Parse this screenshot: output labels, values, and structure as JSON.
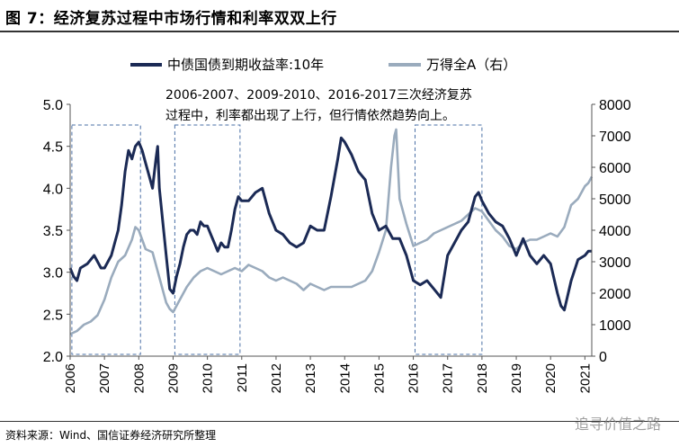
{
  "figure": {
    "title": "图 7：经济复苏过程中市场行情和利率双双上行",
    "source": "资料来源：Wind、国信证券经济研究所整理",
    "watermark": "追寻价值之路"
  },
  "chart_data": {
    "type": "line",
    "title": "图 7：经济复苏过程中市场行情和利率双双上行",
    "annotation_line1": "2006-2007、2009-2010、2016-2017三次经济复苏",
    "annotation_line2": "过程中，利率都出现了上行，但行情依然趋势向上。",
    "x_ticks": [
      "2006",
      "2007",
      "2008",
      "2009",
      "2010",
      "2011",
      "2012",
      "2013",
      "2014",
      "2015",
      "2016",
      "2017",
      "2018",
      "2019",
      "2020",
      "2021"
    ],
    "x_range": [
      2006.0,
      2021.2
    ],
    "y_left": {
      "ticks": [
        "2.0",
        "2.5",
        "3.0",
        "3.5",
        "4.0",
        "4.5",
        "5.0"
      ],
      "range": [
        2.0,
        5.0
      ]
    },
    "y_right": {
      "ticks": [
        "0",
        "1000",
        "2000",
        "3000",
        "4000",
        "5000",
        "6000",
        "7000",
        "8000"
      ],
      "range": [
        0,
        8000
      ]
    },
    "highlight_periods": [
      [
        2006.05,
        2008.05
      ],
      [
        2009.05,
        2010.95
      ],
      [
        2016.05,
        2018.0
      ]
    ],
    "series": [
      {
        "name": "中债国债到期收益率:10年",
        "axis": "left",
        "color": "#1b2a55",
        "x": [
          2006.0,
          2006.1,
          2006.2,
          2006.3,
          2006.5,
          2006.7,
          2006.9,
          2007.0,
          2007.2,
          2007.4,
          2007.5,
          2007.6,
          2007.7,
          2007.8,
          2007.9,
          2008.0,
          2008.1,
          2008.2,
          2008.3,
          2008.4,
          2008.5,
          2008.55,
          2008.6,
          2008.7,
          2008.8,
          2008.9,
          2009.0,
          2009.1,
          2009.2,
          2009.3,
          2009.4,
          2009.5,
          2009.6,
          2009.7,
          2009.8,
          2009.9,
          2010.0,
          2010.1,
          2010.2,
          2010.3,
          2010.4,
          2010.5,
          2010.6,
          2010.7,
          2010.8,
          2010.9,
          2011.0,
          2011.2,
          2011.4,
          2011.6,
          2011.8,
          2012.0,
          2012.2,
          2012.4,
          2012.6,
          2012.8,
          2013.0,
          2013.2,
          2013.4,
          2013.6,
          2013.8,
          2013.9,
          2014.0,
          2014.2,
          2014.4,
          2014.6,
          2014.8,
          2015.0,
          2015.2,
          2015.4,
          2015.6,
          2015.8,
          2016.0,
          2016.2,
          2016.4,
          2016.6,
          2016.8,
          2017.0,
          2017.2,
          2017.4,
          2017.6,
          2017.8,
          2017.9,
          2018.0,
          2018.2,
          2018.4,
          2018.6,
          2018.8,
          2019.0,
          2019.2,
          2019.4,
          2019.6,
          2019.8,
          2020.0,
          2020.2,
          2020.3,
          2020.4,
          2020.6,
          2020.8,
          2021.0,
          2021.1,
          2021.2
        ],
        "values": [
          3.05,
          2.95,
          2.9,
          3.05,
          3.1,
          3.2,
          3.05,
          3.05,
          3.2,
          3.5,
          3.8,
          4.2,
          4.45,
          4.35,
          4.5,
          4.55,
          4.45,
          4.3,
          4.15,
          4.0,
          4.35,
          4.5,
          4.0,
          3.6,
          3.2,
          2.8,
          2.75,
          2.95,
          3.1,
          3.3,
          3.45,
          3.5,
          3.5,
          3.45,
          3.6,
          3.55,
          3.55,
          3.45,
          3.35,
          3.25,
          3.35,
          3.3,
          3.3,
          3.5,
          3.75,
          3.9,
          3.85,
          3.85,
          3.95,
          4.0,
          3.7,
          3.5,
          3.45,
          3.35,
          3.3,
          3.35,
          3.55,
          3.5,
          3.5,
          3.9,
          4.35,
          4.6,
          4.55,
          4.4,
          4.2,
          4.1,
          3.7,
          3.5,
          3.55,
          3.4,
          3.4,
          3.2,
          2.9,
          2.85,
          2.9,
          2.8,
          2.7,
          3.2,
          3.35,
          3.5,
          3.6,
          3.9,
          3.95,
          3.85,
          3.7,
          3.6,
          3.55,
          3.4,
          3.2,
          3.4,
          3.2,
          3.1,
          3.2,
          3.1,
          2.75,
          2.6,
          2.55,
          2.9,
          3.15,
          3.2,
          3.25,
          3.25
        ]
      },
      {
        "name": "万得全A（右）",
        "axis": "right",
        "color": "#9aabbd",
        "x": [
          2006.0,
          2006.2,
          2006.4,
          2006.6,
          2006.8,
          2007.0,
          2007.2,
          2007.4,
          2007.6,
          2007.8,
          2007.9,
          2008.0,
          2008.2,
          2008.4,
          2008.6,
          2008.8,
          2008.9,
          2009.0,
          2009.2,
          2009.4,
          2009.6,
          2009.8,
          2010.0,
          2010.2,
          2010.4,
          2010.6,
          2010.8,
          2011.0,
          2011.2,
          2011.4,
          2011.6,
          2011.8,
          2012.0,
          2012.2,
          2012.4,
          2012.6,
          2012.8,
          2013.0,
          2013.2,
          2013.4,
          2013.6,
          2013.8,
          2014.0,
          2014.2,
          2014.4,
          2014.6,
          2014.8,
          2015.0,
          2015.2,
          2015.35,
          2015.45,
          2015.5,
          2015.6,
          2015.8,
          2016.0,
          2016.2,
          2016.4,
          2016.6,
          2016.8,
          2017.0,
          2017.2,
          2017.4,
          2017.6,
          2017.8,
          2018.0,
          2018.2,
          2018.4,
          2018.6,
          2018.8,
          2019.0,
          2019.2,
          2019.4,
          2019.6,
          2019.8,
          2020.0,
          2020.2,
          2020.4,
          2020.6,
          2020.8,
          2021.0,
          2021.1,
          2021.2
        ],
        "values": [
          700,
          800,
          1000,
          1100,
          1300,
          1800,
          2500,
          3000,
          3200,
          3700,
          4100,
          4000,
          3400,
          3300,
          2500,
          1700,
          1500,
          1400,
          1800,
          2200,
          2500,
          2700,
          2800,
          2700,
          2600,
          2700,
          2800,
          2700,
          2900,
          2800,
          2700,
          2500,
          2400,
          2500,
          2400,
          2300,
          2100,
          2300,
          2200,
          2100,
          2200,
          2200,
          2200,
          2200,
          2300,
          2400,
          2700,
          3300,
          4000,
          6000,
          7000,
          7200,
          5000,
          4200,
          3500,
          3600,
          3700,
          3900,
          4000,
          4100,
          4200,
          4300,
          4500,
          4700,
          4600,
          4300,
          4000,
          3800,
          3500,
          3400,
          3600,
          3700,
          3700,
          3800,
          3900,
          3800,
          4100,
          4800,
          5000,
          5400,
          5500,
          5700
        ]
      }
    ]
  }
}
